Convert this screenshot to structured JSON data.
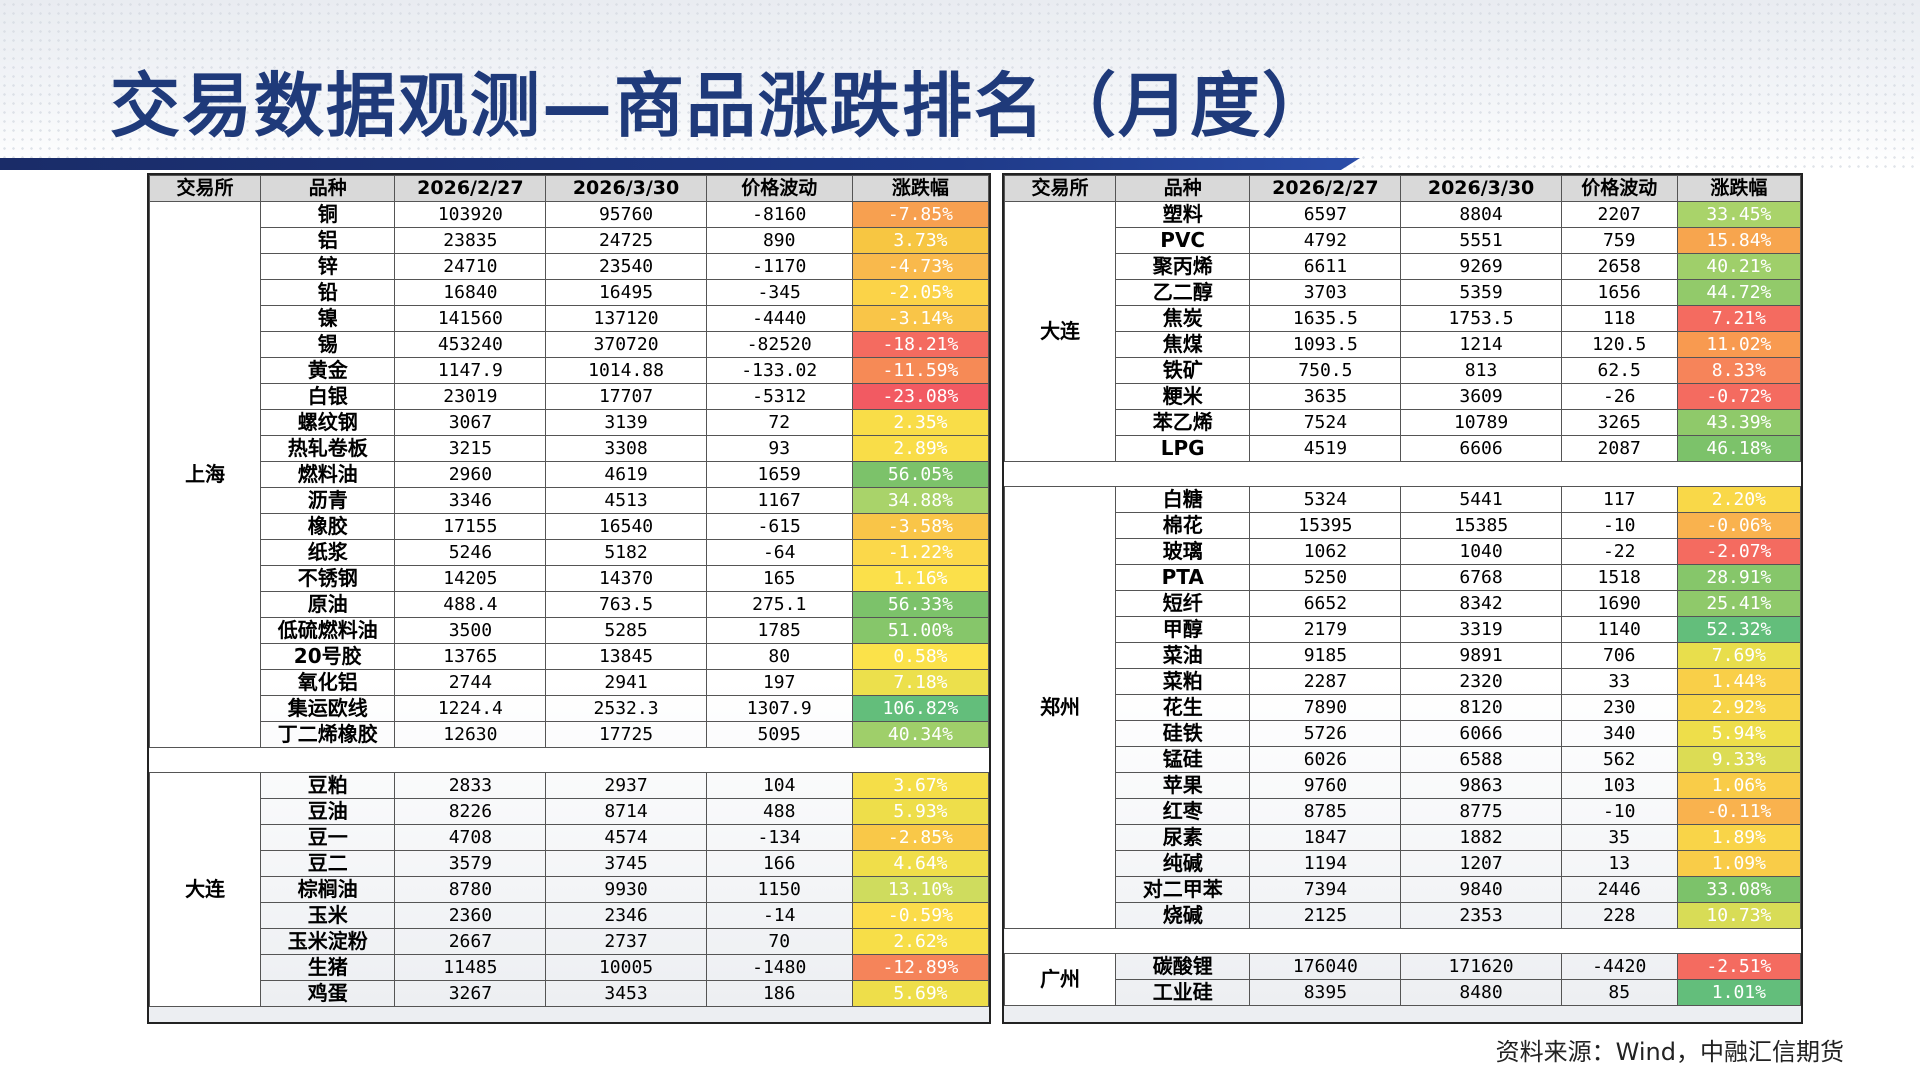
{
  "title": "交易数据观测—商品涨跌排名（月度）",
  "source": "资料来源：Wind，中融汇信期货",
  "headers": {
    "exchange": "交易所",
    "variety": "品种",
    "date1": "2026/2/27",
    "date2": "2026/3/30",
    "change": "价格波动",
    "pct": "涨跌幅"
  },
  "left_groups": [
    {
      "exchange": "上海",
      "rows": [
        {
          "name": "铜",
          "p1": "103920",
          "p2": "95760",
          "chg": "-8160",
          "pct": "-7.85%",
          "color": "#f7a050"
        },
        {
          "name": "铝",
          "p1": "23835",
          "p2": "24725",
          "chg": "890",
          "pct": "3.73%",
          "color": "#f7c642"
        },
        {
          "name": "锌",
          "p1": "24710",
          "p2": "23540",
          "chg": "-1170",
          "pct": "-4.73%",
          "color": "#f9b94c"
        },
        {
          "name": "铅",
          "p1": "16840",
          "p2": "16495",
          "chg": "-345",
          "pct": "-2.05%",
          "color": "#fbd348"
        },
        {
          "name": "镍",
          "p1": "141560",
          "p2": "137120",
          "chg": "-4440",
          "pct": "-3.14%",
          "color": "#f9c548"
        },
        {
          "name": "锡",
          "p1": "453240",
          "p2": "370720",
          "chg": "-82520",
          "pct": "-18.21%",
          "color": "#f46b60"
        },
        {
          "name": "黄金",
          "p1": "1147.9",
          "p2": "1014.88",
          "chg": "-133.02",
          "pct": "-11.59%",
          "color": "#f68a56"
        },
        {
          "name": "白银",
          "p1": "23019",
          "p2": "17707",
          "chg": "-5312",
          "pct": "-23.08%",
          "color": "#f25a62"
        },
        {
          "name": "螺纹钢",
          "p1": "3067",
          "p2": "3139",
          "chg": "72",
          "pct": "2.35%",
          "color": "#f9dd48"
        },
        {
          "name": "热轧卷板",
          "p1": "3215",
          "p2": "3308",
          "chg": "93",
          "pct": "2.89%",
          "color": "#f9dd48"
        },
        {
          "name": "燃料油",
          "p1": "2960",
          "p2": "4619",
          "chg": "1659",
          "pct": "56.05%",
          "color": "#7cc26a"
        },
        {
          "name": "沥青",
          "p1": "3346",
          "p2": "4513",
          "chg": "1167",
          "pct": "34.88%",
          "color": "#a9d36a"
        },
        {
          "name": "橡胶",
          "p1": "17155",
          "p2": "16540",
          "chg": "-615",
          "pct": "-3.58%",
          "color": "#f9c548"
        },
        {
          "name": "纸浆",
          "p1": "5246",
          "p2": "5182",
          "chg": "-64",
          "pct": "-1.22%",
          "color": "#fbd84a"
        },
        {
          "name": "不锈钢",
          "p1": "14205",
          "p2": "14370",
          "chg": "165",
          "pct": "1.16%",
          "color": "#fbe04a"
        },
        {
          "name": "原油",
          "p1": "488.4",
          "p2": "763.5",
          "chg": "275.1",
          "pct": "56.33%",
          "color": "#7cc26a"
        },
        {
          "name": "低硫燃料油",
          "p1": "3500",
          "p2": "5285",
          "chg": "1785",
          "pct": "51.00%",
          "color": "#86c66a"
        },
        {
          "name": "20号胶",
          "p1": "13765",
          "p2": "13845",
          "chg": "80",
          "pct": "0.58%",
          "color": "#fbe24a"
        },
        {
          "name": "氧化铝",
          "p1": "2744",
          "p2": "2941",
          "chg": "197",
          "pct": "7.18%",
          "color": "#ece04c"
        },
        {
          "name": "集运欧线",
          "p1": "1224.4",
          "p2": "2532.3",
          "chg": "1307.9",
          "pct": "106.82%",
          "color": "#63be7b"
        },
        {
          "name": "丁二烯橡胶",
          "p1": "12630",
          "p2": "17725",
          "chg": "5095",
          "pct": "40.34%",
          "color": "#9fcf6a"
        }
      ]
    },
    {
      "exchange": "大连",
      "rows": [
        {
          "name": "豆粕",
          "p1": "2833",
          "p2": "2937",
          "chg": "104",
          "pct": "3.67%",
          "color": "#f5de48"
        },
        {
          "name": "豆油",
          "p1": "8226",
          "p2": "8714",
          "chg": "488",
          "pct": "5.93%",
          "color": "#eede4a"
        },
        {
          "name": "豆一",
          "p1": "4708",
          "p2": "4574",
          "chg": "-134",
          "pct": "-2.85%",
          "color": "#f9c848"
        },
        {
          "name": "豆二",
          "p1": "3579",
          "p2": "3745",
          "chg": "166",
          "pct": "4.64%",
          "color": "#f0de4a"
        },
        {
          "name": "棕榈油",
          "p1": "8780",
          "p2": "9930",
          "chg": "1150",
          "pct": "13.10%",
          "color": "#cfdc5e"
        },
        {
          "name": "玉米",
          "p1": "2360",
          "p2": "2346",
          "chg": "-14",
          "pct": "-0.59%",
          "color": "#fbdc4a"
        },
        {
          "name": "玉米淀粉",
          "p1": "2667",
          "p2": "2737",
          "chg": "70",
          "pct": "2.62%",
          "color": "#f7de48"
        },
        {
          "name": "生猪",
          "p1": "11485",
          "p2": "10005",
          "chg": "-1480",
          "pct": "-12.89%",
          "color": "#f5845a"
        },
        {
          "name": "鸡蛋",
          "p1": "3267",
          "p2": "3453",
          "chg": "186",
          "pct": "5.69%",
          "color": "#eede4a"
        }
      ]
    }
  ],
  "right_groups": [
    {
      "exchange": "大连",
      "rows": [
        {
          "name": "塑料",
          "p1": "6597",
          "p2": "8804",
          "chg": "2207",
          "pct": "33.45%",
          "color": "#a9d36a"
        },
        {
          "name": "PVC",
          "p1": "4792",
          "p2": "5551",
          "chg": "759",
          "pct": "15.84%",
          "color": "#f7a54e"
        },
        {
          "name": "聚丙烯",
          "p1": "6611",
          "p2": "9269",
          "chg": "2658",
          "pct": "40.21%",
          "color": "#9fcf6a"
        },
        {
          "name": "乙二醇",
          "p1": "3703",
          "p2": "5359",
          "chg": "1656",
          "pct": "44.72%",
          "color": "#92ca6a"
        },
        {
          "name": "焦炭",
          "p1": "1635.5",
          "p2": "1753.5",
          "chg": "118",
          "pct": "7.21%",
          "color": "#f46b60"
        },
        {
          "name": "焦煤",
          "p1": "1093.5",
          "p2": "1214",
          "chg": "120.5",
          "pct": "11.02%",
          "color": "#f89a50"
        },
        {
          "name": "铁矿",
          "p1": "750.5",
          "p2": "813",
          "chg": "62.5",
          "pct": "8.33%",
          "color": "#f6845a"
        },
        {
          "name": "粳米",
          "p1": "3635",
          "p2": "3609",
          "chg": "-26",
          "pct": "-0.72%",
          "color": "#f46b60"
        },
        {
          "name": "苯乙烯",
          "p1": "7524",
          "p2": "10789",
          "chg": "3265",
          "pct": "43.39%",
          "color": "#8fc96a"
        },
        {
          "name": "LPG",
          "p1": "4519",
          "p2": "6606",
          "chg": "2087",
          "pct": "46.18%",
          "color": "#7cc26a"
        }
      ]
    },
    {
      "exchange": "郑州",
      "rows": [
        {
          "name": "白糖",
          "p1": "5324",
          "p2": "5441",
          "chg": "117",
          "pct": "2.20%",
          "color": "#f9d848"
        },
        {
          "name": "棉花",
          "p1": "15395",
          "p2": "15385",
          "chg": "-10",
          "pct": "-0.06%",
          "color": "#f9b24e"
        },
        {
          "name": "玻璃",
          "p1": "1062",
          "p2": "1040",
          "chg": "-22",
          "pct": "-2.07%",
          "color": "#f46b60"
        },
        {
          "name": "PTA",
          "p1": "5250",
          "p2": "6768",
          "chg": "1518",
          "pct": "28.91%",
          "color": "#86c66a"
        },
        {
          "name": "短纤",
          "p1": "6652",
          "p2": "8342",
          "chg": "1690",
          "pct": "25.41%",
          "color": "#8fc96a"
        },
        {
          "name": "甲醇",
          "p1": "2179",
          "p2": "3319",
          "chg": "1140",
          "pct": "52.32%",
          "color": "#63be7b"
        },
        {
          "name": "菜油",
          "p1": "9185",
          "p2": "9891",
          "chg": "706",
          "pct": "7.69%",
          "color": "#e8de4c"
        },
        {
          "name": "菜粕",
          "p1": "2287",
          "p2": "2320",
          "chg": "33",
          "pct": "1.44%",
          "color": "#f9cf48"
        },
        {
          "name": "花生",
          "p1": "7890",
          "p2": "8120",
          "chg": "230",
          "pct": "2.92%",
          "color": "#f7d548"
        },
        {
          "name": "硅铁",
          "p1": "5726",
          "p2": "6066",
          "chg": "340",
          "pct": "5.94%",
          "color": "#eede4a"
        },
        {
          "name": "锰硅",
          "p1": "6026",
          "p2": "6588",
          "chg": "562",
          "pct": "9.33%",
          "color": "#dcdc54"
        },
        {
          "name": "苹果",
          "p1": "9760",
          "p2": "9863",
          "chg": "103",
          "pct": "1.06%",
          "color": "#f9cc48"
        },
        {
          "name": "红枣",
          "p1": "8785",
          "p2": "8775",
          "chg": "-10",
          "pct": "-0.11%",
          "color": "#f9b24e"
        },
        {
          "name": "尿素",
          "p1": "1847",
          "p2": "1882",
          "chg": "35",
          "pct": "1.89%",
          "color": "#f9d448"
        },
        {
          "name": "纯碱",
          "p1": "1194",
          "p2": "1207",
          "chg": "13",
          "pct": "1.09%",
          "color": "#f9cc48"
        },
        {
          "name": "对二甲苯",
          "p1": "7394",
          "p2": "9840",
          "chg": "2446",
          "pct": "33.08%",
          "color": "#7cc26a"
        },
        {
          "name": "烧碱",
          "p1": "2125",
          "p2": "2353",
          "chg": "228",
          "pct": "10.73%",
          "color": "#d8dc56"
        }
      ]
    },
    {
      "exchange": "广州",
      "rows": [
        {
          "name": "碳酸锂",
          "p1": "176040",
          "p2": "171620",
          "chg": "-4420",
          "pct": "-2.51%",
          "color": "#f46b60"
        },
        {
          "name": "工业硅",
          "p1": "8395",
          "p2": "8480",
          "chg": "85",
          "pct": "1.01%",
          "color": "#63be7b"
        }
      ]
    }
  ]
}
